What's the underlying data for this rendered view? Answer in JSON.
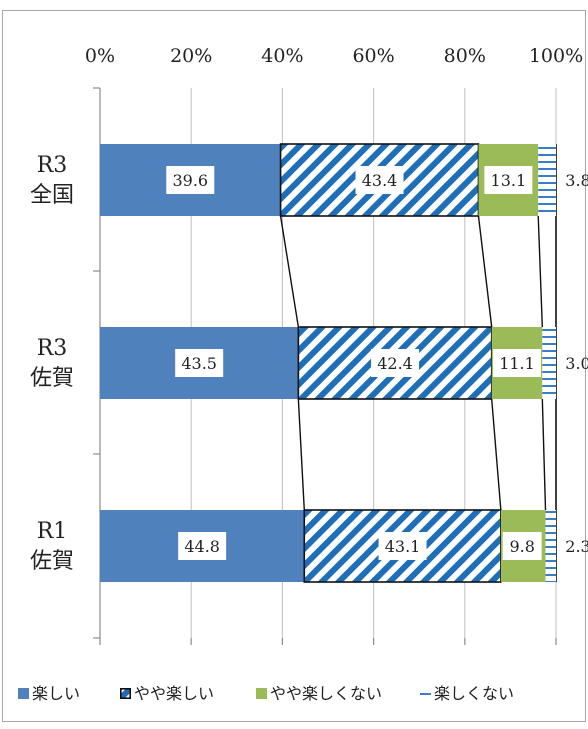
{
  "chart_data": {
    "type": "bar",
    "orientation": "horizontal",
    "stacked": "percent",
    "xlim": [
      0,
      100
    ],
    "x_ticks": [
      "0%",
      "20%",
      "40%",
      "60%",
      "80%",
      "100%"
    ],
    "categories": [
      {
        "line1": "R3",
        "line2": "全国"
      },
      {
        "line1": "R3",
        "line2": "佐賀"
      },
      {
        "line1": "R1",
        "line2": "佐賀"
      }
    ],
    "series": [
      {
        "name": "楽しい",
        "values": [
          39.6,
          43.5,
          44.8
        ],
        "labels": [
          "39.6",
          "43.5",
          "44.8"
        ],
        "color": "#4f81bd"
      },
      {
        "name": "やや楽しい",
        "values": [
          43.4,
          42.4,
          43.1
        ],
        "labels": [
          "43.4",
          "42.4",
          "43.1"
        ],
        "color": "#1f6fb8"
      },
      {
        "name": "やや楽しくない",
        "values": [
          13.1,
          11.1,
          9.8
        ],
        "labels": [
          "13.1",
          "11.1",
          "9.8"
        ],
        "color": "#9bbb59"
      },
      {
        "name": "楽しくない",
        "values": [
          3.8,
          3.0,
          2.3
        ],
        "labels": [
          "3.8",
          "3.0",
          "2.3"
        ],
        "color": "#3b7ec8"
      }
    ],
    "grid": true,
    "series_lines": true,
    "legend_position": "bottom"
  }
}
